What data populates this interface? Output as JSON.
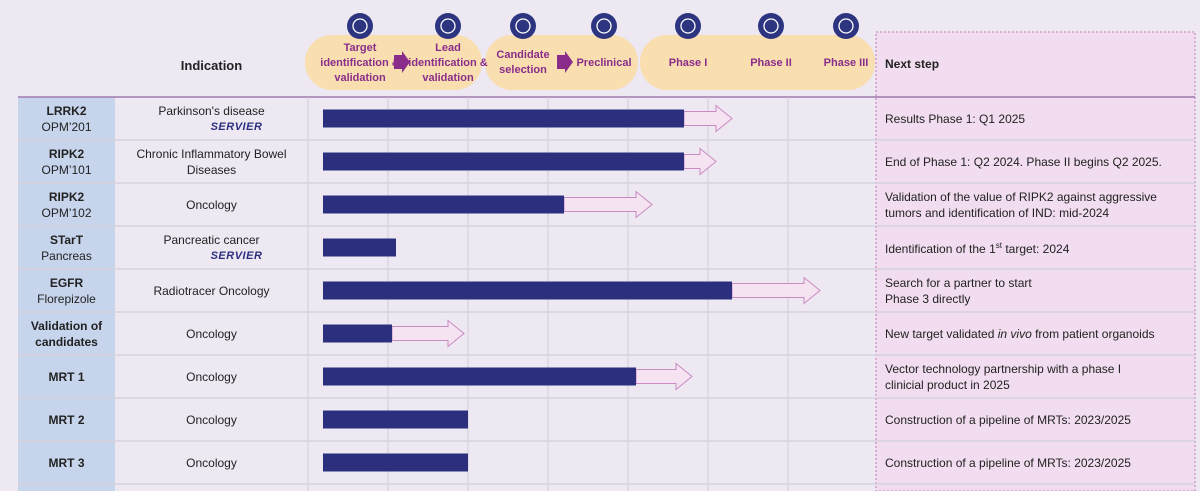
{
  "header": {
    "indication": "Indication",
    "next_step": "Next step"
  },
  "stages": [
    "Target identification & validation",
    "Lead identification & validation",
    "Candidate selection",
    "Preclinical",
    "Phase I",
    "Phase II",
    "Phase III"
  ],
  "rows": [
    {
      "name": "LRRK2",
      "code": "OPM’201",
      "indication": "Parkinson's disease",
      "partner": "SERVIER",
      "progress": 4.7,
      "extension": 5.3,
      "next_step": [
        "Results Phase 1: Q1 2025"
      ]
    },
    {
      "name": "RIPK2",
      "code": "OPM’101",
      "indication": "Chronic Inflammatory Bowel Diseases",
      "progress": 4.7,
      "extension": 5.1,
      "next_step": [
        "End of Phase 1: Q2 2024. Phase II begins Q2 2025."
      ]
    },
    {
      "name": "RIPK2",
      "code": "OPM’102",
      "indication": "Oncology",
      "progress": 3.2,
      "extension": 4.3,
      "next_step": [
        "Validation of the value of RIPK2 against aggressive",
        "tumors and identification of IND: mid-2024"
      ]
    },
    {
      "name": "STarT",
      "code": "Pancreas",
      "indication": "Pancreatic cancer",
      "partner": "SERVIER",
      "progress": 1.1,
      "extension": null,
      "next_step": [
        [
          {
            "text": "Identification of the 1"
          },
          {
            "text": "st",
            "style": "sup"
          },
          {
            "text": " target: 2024"
          }
        ]
      ]
    },
    {
      "name": "EGFR",
      "code": "Florepizole",
      "indication": "Radiotracer Oncology",
      "progress": 5.3,
      "extension": 6.4,
      "next_step": [
        "Search for a partner to start",
        "Phase 3 directly"
      ]
    },
    {
      "name": "Validation of candidates",
      "indication": "Oncology",
      "progress": 1.05,
      "extension": 1.95,
      "next_step": [
        [
          {
            "text": "New target validated "
          },
          {
            "text": "in vivo",
            "style": "italic"
          },
          {
            "text": " from patient organoids"
          }
        ]
      ]
    },
    {
      "name": "MRT 1",
      "indication": "Oncology",
      "progress": 4.1,
      "extension": 4.8,
      "next_step": [
        "Vector technology partnership with a phase I",
        "clinicial product in 2025"
      ]
    },
    {
      "name": "MRT 2",
      "indication": "Oncology",
      "progress": 2.0,
      "extension": null,
      "next_step": [
        "Construction of a pipeline of MRTs: 2023/2025"
      ]
    },
    {
      "name": "MRT 3",
      "indication": "Oncology",
      "progress": 2.0,
      "extension": null,
      "next_step": [
        "Construction of a pipeline of MRTs: 2023/2025"
      ]
    }
  ]
}
